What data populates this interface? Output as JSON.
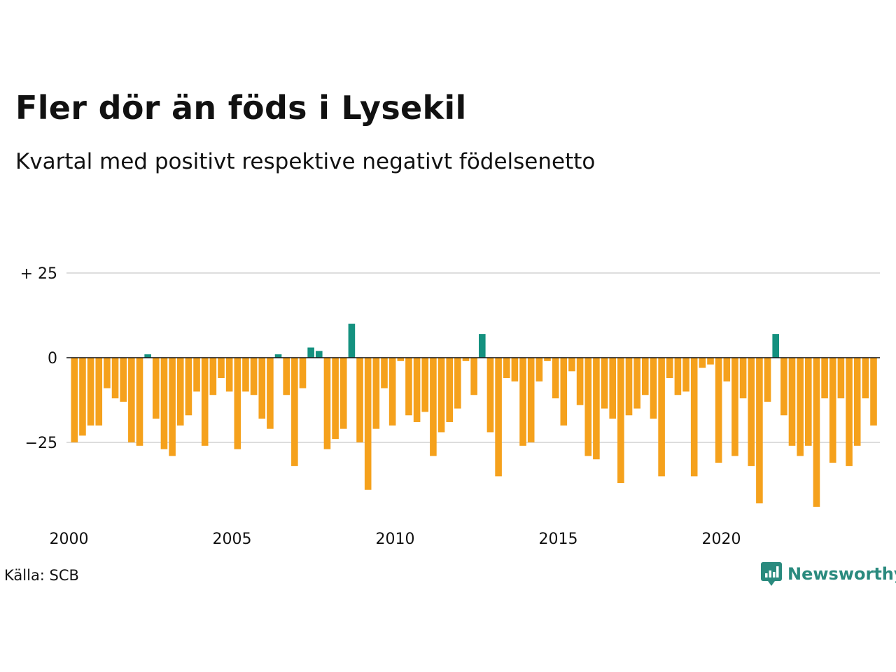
{
  "title": "Fler dör än föds i Lysekil",
  "subtitle": "Kvartal med positivt respektive negativt födelsenetto",
  "source": "Källa: SCB",
  "logo": {
    "text": "Newsworthy",
    "icon": "newsworthy-logo-icon",
    "color": "#2a8a7e"
  },
  "colors": {
    "positive": "#14917f",
    "negative": "#f5a11c",
    "grid": "#dddddd",
    "zero_line": "#111111"
  },
  "chart_data": {
    "type": "bar",
    "ylim": [
      -44,
      25
    ],
    "yticks": [
      25,
      0,
      -25
    ],
    "ytick_labels": [
      "+ 25",
      "0",
      "−25"
    ],
    "xticks": [
      2000,
      2005,
      2010,
      2015,
      2020
    ],
    "xtick_labels": [
      "2000",
      "2005",
      "2010",
      "2015",
      "2020"
    ],
    "grid": true,
    "x_start": "2000 Q1",
    "frequency": "quarterly",
    "values": [
      -25,
      -23,
      -20,
      -20,
      -9,
      -12,
      -13,
      -25,
      -26,
      1,
      -18,
      -27,
      -29,
      -20,
      -17,
      -10,
      -26,
      -11,
      -6,
      -10,
      -27,
      -10,
      -11,
      -18,
      -21,
      1,
      -11,
      -32,
      -9,
      3,
      2,
      -27,
      -24,
      -21,
      10,
      -25,
      -39,
      -21,
      -9,
      -20,
      -1,
      -17,
      -19,
      -16,
      -29,
      -22,
      -19,
      -15,
      -1,
      -11,
      7,
      -22,
      -35,
      -6,
      -7,
      -26,
      -25,
      -7,
      -1,
      -12,
      -20,
      -4,
      -14,
      -29,
      -30,
      -15,
      -18,
      -37,
      -17,
      -15,
      -11,
      -18,
      -35,
      -6,
      -11,
      -10,
      -35,
      -3,
      -2,
      -31,
      -7,
      -29,
      -12,
      -32,
      -43,
      -13,
      7,
      -17,
      -26,
      -29,
      -26,
      -44,
      -12,
      -31,
      -12,
      -32,
      -26,
      -12,
      -20
    ]
  }
}
